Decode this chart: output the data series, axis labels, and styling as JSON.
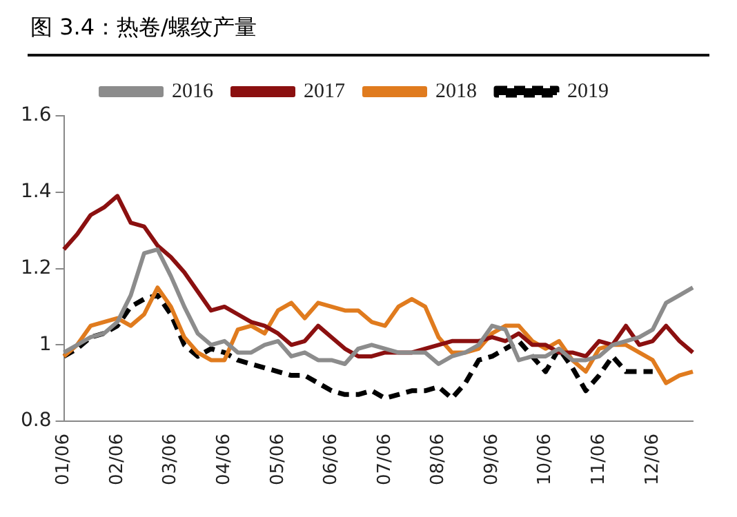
{
  "chart_data": {
    "type": "line",
    "title": "图 3.4：热卷/螺纹产量",
    "categories": [
      "01/06",
      null,
      null,
      null,
      "02/06",
      null,
      null,
      null,
      "03/06",
      null,
      null,
      null,
      "04/06",
      null,
      null,
      null,
      "05/06",
      null,
      null,
      null,
      "06/06",
      null,
      null,
      null,
      "07/06",
      null,
      null,
      null,
      "08/06",
      null,
      null,
      null,
      "09/06",
      null,
      null,
      null,
      "10/06",
      null,
      null,
      null,
      "11/06",
      null,
      null,
      null,
      "12/06",
      null,
      null,
      null
    ],
    "series": [
      {
        "name": "2016",
        "color": "#8c8c8c",
        "line_style": "solid",
        "values": [
          0.98,
          1.0,
          1.02,
          1.03,
          1.06,
          1.13,
          1.24,
          1.25,
          1.18,
          1.1,
          1.03,
          1.0,
          1.01,
          0.98,
          0.98,
          1.0,
          1.01,
          0.97,
          0.98,
          0.96,
          0.96,
          0.95,
          0.99,
          1.0,
          0.99,
          0.98,
          0.98,
          0.98,
          0.95,
          0.97,
          0.98,
          1.0,
          1.05,
          1.04,
          0.96,
          0.97,
          0.97,
          0.99,
          0.96,
          0.96,
          0.97,
          1.0,
          1.01,
          1.02,
          1.04,
          1.11,
          1.13,
          1.15
        ]
      },
      {
        "name": "2017",
        "color": "#8b1010",
        "line_style": "solid",
        "values": [
          1.25,
          1.29,
          1.34,
          1.36,
          1.39,
          1.32,
          1.31,
          1.26,
          1.23,
          1.19,
          1.14,
          1.09,
          1.1,
          1.08,
          1.06,
          1.05,
          1.03,
          1.0,
          1.01,
          1.05,
          1.02,
          0.99,
          0.97,
          0.97,
          0.98,
          0.98,
          0.98,
          0.99,
          1.0,
          1.01,
          1.01,
          1.01,
          1.02,
          1.01,
          1.03,
          1.0,
          1.0,
          0.98,
          0.98,
          0.97,
          1.01,
          1.0,
          1.05,
          1.0,
          1.01,
          1.05,
          1.01,
          0.98
        ]
      },
      {
        "name": "2018",
        "color": "#e07b1e",
        "line_style": "solid",
        "values": [
          0.97,
          1.0,
          1.05,
          1.06,
          1.07,
          1.05,
          1.08,
          1.15,
          1.1,
          1.02,
          0.98,
          0.96,
          0.96,
          1.04,
          1.05,
          1.03,
          1.09,
          1.11,
          1.07,
          1.11,
          1.1,
          1.09,
          1.09,
          1.06,
          1.05,
          1.1,
          1.12,
          1.1,
          1.02,
          0.98,
          0.98,
          0.99,
          1.03,
          1.05,
          1.05,
          1.01,
          0.99,
          1.01,
          0.96,
          0.93,
          0.99,
          1.0,
          1.0,
          0.98,
          0.96,
          0.9,
          0.92,
          0.93
        ]
      },
      {
        "name": "2019",
        "color": "#000000",
        "line_style": "dashed",
        "values": [
          0.97,
          0.99,
          1.02,
          1.03,
          1.05,
          1.1,
          1.12,
          1.13,
          1.08,
          1.0,
          0.97,
          0.99,
          0.98,
          0.96,
          0.95,
          0.94,
          0.93,
          0.92,
          0.92,
          0.9,
          0.88,
          0.87,
          0.87,
          0.88,
          0.86,
          0.87,
          0.88,
          0.88,
          0.89,
          0.86,
          0.9,
          0.96,
          0.97,
          0.99,
          1.01,
          0.97,
          0.93,
          0.99,
          0.94,
          0.88,
          0.92,
          0.97,
          0.93,
          0.93,
          0.93,
          null,
          null,
          null
        ]
      }
    ],
    "ylim": [
      0.8,
      1.6
    ],
    "yticks": [
      0.8,
      1,
      1.2,
      1.4,
      1.6
    ],
    "legend": "top"
  }
}
